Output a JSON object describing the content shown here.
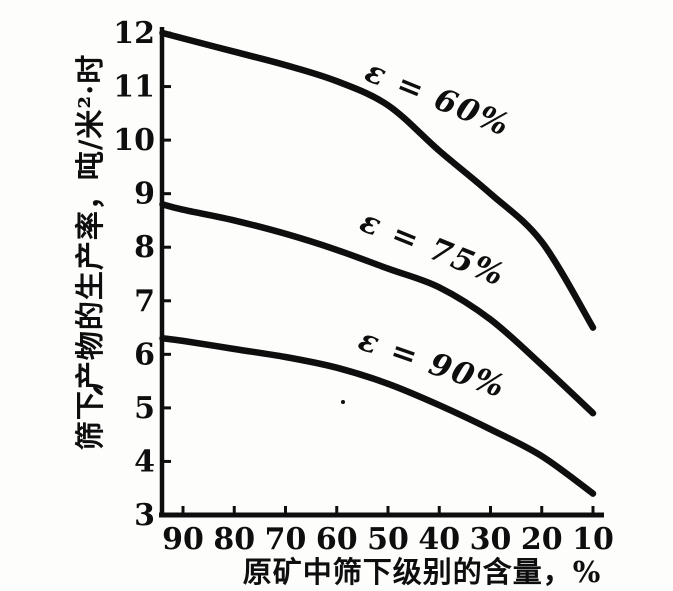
{
  "figure": {
    "background": "#fdfdfb",
    "ink_color": "#0e0e0e"
  },
  "chart_data": {
    "type": "line",
    "title": "",
    "xlabel": "原矿中筛下级别的含量，%",
    "ylabel": "筛下产物的生产率，吨/米²·时",
    "x_axis_reversed": true,
    "xlim": [
      95,
      8
    ],
    "ylim": [
      3,
      12
    ],
    "x_ticks": [
      90,
      80,
      70,
      60,
      50,
      40,
      30,
      20,
      10
    ],
    "y_ticks": [
      12,
      11,
      10,
      9,
      8,
      7,
      6,
      5,
      4,
      3
    ],
    "grid": false,
    "legend_position": "labels-on-curves",
    "x": [
      94,
      90,
      80,
      70,
      60,
      50,
      40,
      30,
      20,
      10
    ],
    "series": [
      {
        "name": "epsilon-60",
        "label": "ε = 60%",
        "values": [
          12.0,
          11.9,
          11.65,
          11.4,
          11.1,
          10.65,
          9.8,
          9.0,
          8.1,
          6.5
        ],
        "label_anchor": {
          "x": 41,
          "y": 10.6,
          "rotation_deg": 22
        }
      },
      {
        "name": "epsilon-75",
        "label": "ε = 75%",
        "values": [
          8.8,
          8.7,
          8.5,
          8.25,
          7.95,
          7.6,
          7.25,
          6.65,
          5.8,
          4.9
        ],
        "label_anchor": {
          "x": 42,
          "y": 7.8,
          "rotation_deg": 22
        }
      },
      {
        "name": "epsilon-90",
        "label": "ε = 90%",
        "values": [
          6.3,
          6.25,
          6.1,
          5.95,
          5.75,
          5.45,
          5.05,
          4.6,
          4.1,
          3.4
        ],
        "label_anchor": {
          "x": 42,
          "y": 5.65,
          "rotation_deg": 19
        }
      }
    ]
  }
}
